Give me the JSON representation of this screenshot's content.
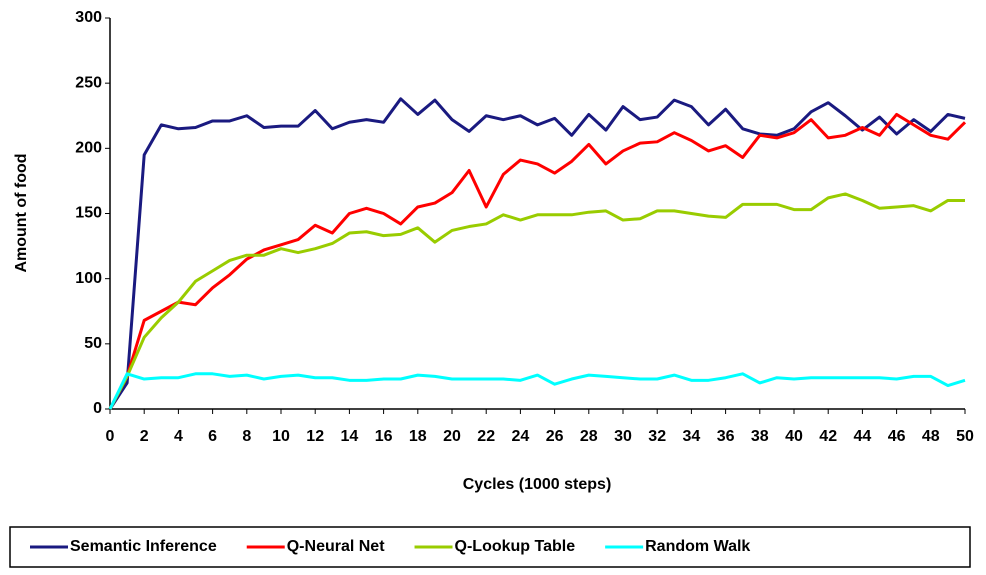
{
  "chart_data": {
    "type": "line",
    "x_label": "Cycles (1000 steps)",
    "y_label": "Amount of food",
    "x": [
      0,
      1,
      2,
      3,
      4,
      5,
      6,
      7,
      8,
      9,
      10,
      11,
      12,
      13,
      14,
      15,
      16,
      17,
      18,
      19,
      20,
      21,
      22,
      23,
      24,
      25,
      26,
      27,
      28,
      29,
      30,
      31,
      32,
      33,
      34,
      35,
      36,
      37,
      38,
      39,
      40,
      41,
      42,
      43,
      44,
      45,
      46,
      47,
      48,
      49,
      50
    ],
    "xlim": [
      0,
      50
    ],
    "xticks": [
      0,
      2,
      4,
      6,
      8,
      10,
      12,
      14,
      16,
      18,
      20,
      22,
      24,
      26,
      28,
      30,
      32,
      34,
      36,
      38,
      40,
      42,
      44,
      46,
      48,
      50
    ],
    "ylim": [
      0,
      300
    ],
    "yticks": [
      0,
      50,
      100,
      150,
      200,
      250,
      300
    ],
    "grid": false,
    "legend": "bottom",
    "series": [
      {
        "name": "Semantic Inference",
        "color": "#1a1a80",
        "values": [
          0,
          20,
          195,
          218,
          215,
          216,
          221,
          221,
          225,
          216,
          217,
          217,
          229,
          215,
          220,
          222,
          220,
          238,
          226,
          237,
          222,
          213,
          225,
          222,
          225,
          218,
          223,
          210,
          226,
          214,
          232,
          222,
          224,
          237,
          232,
          218,
          230,
          215,
          211,
          210,
          215,
          228,
          235,
          225,
          214,
          224,
          211,
          222,
          213,
          226,
          223
        ]
      },
      {
        "name": "Q-Neural Net",
        "color": "#ff0000",
        "values": [
          0,
          25,
          68,
          75,
          82,
          80,
          93,
          103,
          115,
          122,
          126,
          130,
          141,
          135,
          150,
          154,
          150,
          142,
          155,
          158,
          166,
          183,
          155,
          180,
          191,
          188,
          181,
          190,
          203,
          188,
          198,
          204,
          205,
          212,
          206,
          198,
          202,
          193,
          210,
          208,
          212,
          222,
          208,
          210,
          216,
          210,
          226,
          218,
          210,
          207,
          220
        ]
      },
      {
        "name": "Q-Lookup Table",
        "color": "#99cc00",
        "values": [
          0,
          25,
          55,
          70,
          82,
          98,
          106,
          114,
          118,
          118,
          123,
          120,
          123,
          127,
          135,
          136,
          133,
          134,
          139,
          128,
          137,
          140,
          142,
          149,
          145,
          149,
          149,
          149,
          151,
          152,
          145,
          146,
          152,
          152,
          150,
          148,
          147,
          157,
          157,
          157,
          153,
          153,
          162,
          165,
          160,
          154,
          155,
          156,
          152,
          160,
          160
        ]
      },
      {
        "name": "Random Walk",
        "color": "#00ffff",
        "values": [
          0,
          27,
          23,
          24,
          24,
          27,
          27,
          25,
          26,
          23,
          25,
          26,
          24,
          24,
          22,
          22,
          23,
          23,
          26,
          25,
          23,
          23,
          23,
          23,
          22,
          26,
          19,
          23,
          26,
          25,
          24,
          23,
          23,
          26,
          22,
          22,
          24,
          27,
          20,
          24,
          23,
          24,
          24,
          24,
          24,
          24,
          23,
          25,
          25,
          18,
          22
        ]
      }
    ]
  }
}
